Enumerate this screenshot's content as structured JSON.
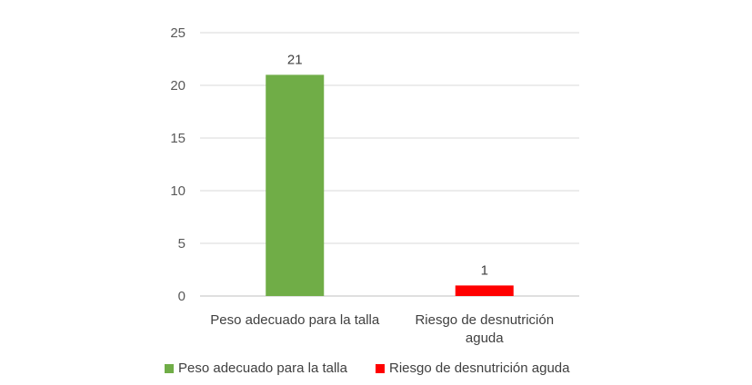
{
  "chart_data": {
    "type": "bar",
    "categories": [
      "Peso adecuado para la talla",
      "Riesgo de desnutrición aguda"
    ],
    "category_label_lines": [
      [
        "Peso adecuado para la talla"
      ],
      [
        "Riesgo de desnutrición",
        "aguda"
      ]
    ],
    "values": [
      21,
      1
    ],
    "colors": [
      "#70ad47",
      "#ff0000"
    ],
    "ylim": [
      0,
      25
    ],
    "yticks": [
      0,
      5,
      10,
      15,
      20,
      25
    ],
    "grid": true,
    "legend_position": "bottom",
    "legend": [
      {
        "label": "Peso adecuado para la talla",
        "color": "#70ad47"
      },
      {
        "label": "Riesgo de desnutrición aguda",
        "color": "#ff0000"
      }
    ],
    "data_labels": [
      "21",
      "1"
    ]
  }
}
